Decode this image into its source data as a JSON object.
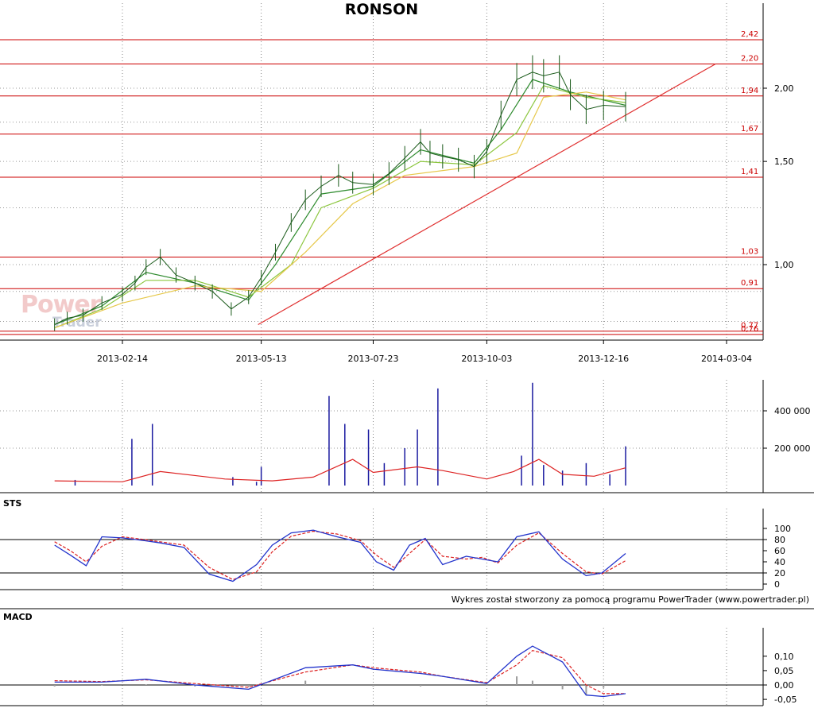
{
  "title": "RONSON",
  "credit": "Wykres został stworzony za pomocą programu PowerTrader (www.powertrader.pl)",
  "watermark": {
    "line1": "Power",
    "line2": "Trader"
  },
  "colors": {
    "price": "#1a5a1a",
    "ma_short": "#2e8b2e",
    "ma_mid": "#8cc63f",
    "ma_long": "#e6c84a",
    "levels": "#cc0000",
    "trendline": "#e03030",
    "volume": "#1a1aa0",
    "volume_ma": "#dd2222",
    "osc_main": "#2233cc",
    "osc_signal": "#dd2222",
    "histogram": "#9a9a9a"
  },
  "chart_data": [
    {
      "type": "line",
      "title": "RONSON",
      "panel": "price",
      "x_tick_labels": [
        "2013-02-14",
        "2013-05-13",
        "2013-07-23",
        "2013-10-03",
        "2013-12-16",
        "2014-03-04"
      ],
      "y_tick_labels": [
        "2,00",
        "1,50",
        "1,00"
      ],
      "y_scale": "log",
      "ylim": [
        0.74,
        2.55
      ],
      "grid": true,
      "levels": [
        {
          "value": 2.42,
          "label": "2,42"
        },
        {
          "value": 2.2,
          "label": "2,20"
        },
        {
          "value": 1.94,
          "label": "1,94"
        },
        {
          "value": 1.67,
          "label": "1,67"
        },
        {
          "value": 1.41,
          "label": "1,41"
        },
        {
          "value": 1.03,
          "label": "1,03"
        },
        {
          "value": 0.91,
          "label": "0,91"
        },
        {
          "value": 0.77,
          "label": "0,77"
        },
        {
          "value": 0.76,
          "label": "0,76"
        }
      ],
      "trendline": {
        "x": [
          "2013-05-11",
          "2014-02-25"
        ],
        "y": [
          0.79,
          2.2
        ]
      },
      "series": [
        {
          "kind": "close",
          "x": [
            "2013-01-02",
            "2013-01-10",
            "2013-01-20",
            "2013-02-01",
            "2013-02-14",
            "2013-02-22",
            "2013-03-01",
            "2013-03-10",
            "2013-03-20",
            "2013-04-01",
            "2013-04-12",
            "2013-04-24",
            "2013-05-05",
            "2013-05-13",
            "2013-05-22",
            "2013-06-01",
            "2013-06-10",
            "2013-06-20",
            "2013-07-01",
            "2013-07-10",
            "2013-07-23",
            "2013-08-02",
            "2013-08-12",
            "2013-08-22",
            "2013-08-28",
            "2013-09-05",
            "2013-09-15",
            "2013-09-25",
            "2013-10-03",
            "2013-10-12",
            "2013-10-22",
            "2013-11-01",
            "2013-11-08",
            "2013-11-18",
            "2013-11-25",
            "2013-12-05",
            "2013-12-16",
            "2013-12-30"
          ],
          "y": [
            0.79,
            0.81,
            0.82,
            0.86,
            0.89,
            0.93,
            0.99,
            1.03,
            0.96,
            0.93,
            0.9,
            0.84,
            0.88,
            0.95,
            1.05,
            1.18,
            1.29,
            1.36,
            1.42,
            1.38,
            1.37,
            1.43,
            1.52,
            1.62,
            1.55,
            1.53,
            1.51,
            1.47,
            1.56,
            1.8,
            2.07,
            2.13,
            2.1,
            2.13,
            1.95,
            1.84,
            1.87,
            1.86
          ]
        },
        {
          "kind": "moving-average",
          "period": "short",
          "x": [
            "2013-01-02",
            "2013-02-01",
            "2013-03-01",
            "2013-04-01",
            "2013-05-05",
            "2013-05-22",
            "2013-06-20",
            "2013-07-23",
            "2013-08-22",
            "2013-09-25",
            "2013-10-12",
            "2013-11-01",
            "2013-11-25",
            "2013-12-30"
          ],
          "y": [
            0.79,
            0.85,
            0.97,
            0.93,
            0.87,
            1.0,
            1.32,
            1.36,
            1.57,
            1.49,
            1.7,
            2.07,
            1.97,
            1.87
          ]
        },
        {
          "kind": "moving-average",
          "period": "mid",
          "x": [
            "2013-01-02",
            "2013-02-01",
            "2013-03-01",
            "2013-04-01",
            "2013-05-05",
            "2013-06-01",
            "2013-06-20",
            "2013-07-23",
            "2013-08-22",
            "2013-09-25",
            "2013-10-22",
            "2013-11-08",
            "2013-12-05",
            "2013-12-30"
          ],
          "y": [
            0.78,
            0.84,
            0.94,
            0.94,
            0.88,
            1.0,
            1.25,
            1.35,
            1.5,
            1.48,
            1.68,
            2.02,
            1.93,
            1.89
          ]
        },
        {
          "kind": "moving-average",
          "period": "long",
          "x": [
            "2013-01-02",
            "2013-02-14",
            "2013-04-01",
            "2013-05-13",
            "2013-06-10",
            "2013-07-10",
            "2013-08-12",
            "2013-09-25",
            "2013-10-22",
            "2013-11-08",
            "2013-12-05",
            "2013-12-30"
          ],
          "y": [
            0.78,
            0.86,
            0.92,
            0.9,
            1.05,
            1.27,
            1.42,
            1.47,
            1.55,
            1.93,
            1.97,
            1.91
          ]
        }
      ]
    },
    {
      "type": "bar",
      "panel": "volume",
      "y_tick_labels": [
        "400 000",
        "200 000"
      ],
      "ylim": [
        0,
        580000
      ],
      "grid": true,
      "x": [
        "2013-01-15",
        "2013-02-20",
        "2013-03-05",
        "2013-04-25",
        "2013-05-10",
        "2013-05-13",
        "2013-06-25",
        "2013-07-05",
        "2013-07-20",
        "2013-07-30",
        "2013-08-12",
        "2013-08-20",
        "2013-09-02",
        "2013-10-25",
        "2013-11-01",
        "2013-11-08",
        "2013-11-20",
        "2013-12-05",
        "2013-12-20",
        "2013-12-30"
      ],
      "values": [
        30000,
        250000,
        330000,
        45000,
        20000,
        100000,
        480000,
        330000,
        300000,
        120000,
        200000,
        300000,
        520000,
        160000,
        550000,
        110000,
        80000,
        120000,
        60000,
        210000
      ],
      "moving_average": {
        "x": [
          "2013-01-02",
          "2013-02-14",
          "2013-03-10",
          "2013-04-20",
          "2013-05-20",
          "2013-06-15",
          "2013-07-10",
          "2013-07-23",
          "2013-08-20",
          "2013-09-05",
          "2013-10-03",
          "2013-10-20",
          "2013-11-05",
          "2013-11-20",
          "2013-12-10",
          "2013-12-30"
        ],
        "y": [
          25000,
          20000,
          75000,
          35000,
          25000,
          45000,
          140000,
          70000,
          100000,
          80000,
          35000,
          75000,
          140000,
          60000,
          50000,
          95000
        ]
      }
    },
    {
      "type": "line",
      "title": "STS",
      "panel": "stochastic",
      "y_tick_labels": [
        "100",
        "80",
        "60",
        "40",
        "20",
        "0"
      ],
      "ylim": [
        0,
        100
      ],
      "reference_lines": [
        80,
        20
      ],
      "series": [
        {
          "kind": "%K",
          "x": [
            "2013-01-02",
            "2013-01-12",
            "2013-01-22",
            "2013-02-01",
            "2013-02-14",
            "2013-02-28",
            "2013-03-10",
            "2013-03-25",
            "2013-04-10",
            "2013-04-25",
            "2013-05-10",
            "2013-05-20",
            "2013-06-01",
            "2013-06-15",
            "2013-06-30",
            "2013-07-15",
            "2013-07-25",
            "2013-08-05",
            "2013-08-15",
            "2013-08-25",
            "2013-09-05",
            "2013-09-20",
            "2013-09-30",
            "2013-10-10",
            "2013-10-22",
            "2013-11-05",
            "2013-11-20",
            "2013-12-05",
            "2013-12-15",
            "2013-12-30"
          ],
          "y": [
            70,
            52,
            33,
            85,
            83,
            78,
            74,
            66,
            18,
            5,
            35,
            70,
            92,
            97,
            85,
            75,
            40,
            25,
            70,
            82,
            35,
            50,
            45,
            40,
            85,
            94,
            45,
            15,
            20,
            55
          ]
        },
        {
          "kind": "%D",
          "x": [
            "2013-01-02",
            "2013-01-12",
            "2013-01-22",
            "2013-02-01",
            "2013-02-14",
            "2013-02-28",
            "2013-03-10",
            "2013-03-25",
            "2013-04-10",
            "2013-04-25",
            "2013-05-10",
            "2013-05-20",
            "2013-06-01",
            "2013-06-15",
            "2013-06-30",
            "2013-07-15",
            "2013-07-25",
            "2013-08-05",
            "2013-08-15",
            "2013-08-25",
            "2013-09-05",
            "2013-09-20",
            "2013-09-30",
            "2013-10-10",
            "2013-10-22",
            "2013-11-05",
            "2013-11-20",
            "2013-12-05",
            "2013-12-15",
            "2013-12-30"
          ],
          "y": [
            76,
            60,
            40,
            68,
            85,
            80,
            76,
            70,
            30,
            8,
            22,
            58,
            86,
            95,
            90,
            78,
            52,
            30,
            55,
            80,
            50,
            45,
            48,
            38,
            70,
            92,
            55,
            22,
            18,
            42
          ]
        }
      ]
    },
    {
      "type": "line",
      "title": "MACD",
      "panel": "macd",
      "y_tick_labels": [
        "0,10",
        "0,05",
        "0,00",
        "-0,05"
      ],
      "ylim": [
        -0.06,
        0.17
      ],
      "series": [
        {
          "kind": "macd",
          "x": [
            "2013-01-02",
            "2013-02-01",
            "2013-03-01",
            "2013-04-01",
            "2013-05-05",
            "2013-06-10",
            "2013-07-10",
            "2013-07-23",
            "2013-08-22",
            "2013-09-05",
            "2013-10-03",
            "2013-10-22",
            "2013-11-01",
            "2013-11-20",
            "2013-12-05",
            "2013-12-16",
            "2013-12-30"
          ],
          "y": [
            0.01,
            0.01,
            0.02,
            0.0,
            -0.015,
            0.06,
            0.07,
            0.055,
            0.04,
            0.03,
            0.005,
            0.1,
            0.135,
            0.08,
            -0.035,
            -0.04,
            -0.03
          ]
        },
        {
          "kind": "signal",
          "x": [
            "2013-01-02",
            "2013-02-01",
            "2013-03-01",
            "2013-04-01",
            "2013-05-05",
            "2013-06-10",
            "2013-07-10",
            "2013-07-23",
            "2013-08-22",
            "2013-09-05",
            "2013-10-03",
            "2013-10-22",
            "2013-11-01",
            "2013-11-20",
            "2013-12-05",
            "2013-12-16",
            "2013-12-30"
          ],
          "y": [
            0.015,
            0.012,
            0.018,
            0.005,
            -0.008,
            0.045,
            0.07,
            0.06,
            0.045,
            0.03,
            0.008,
            0.07,
            0.12,
            0.095,
            0.0,
            -0.03,
            -0.03
          ]
        }
      ]
    }
  ]
}
